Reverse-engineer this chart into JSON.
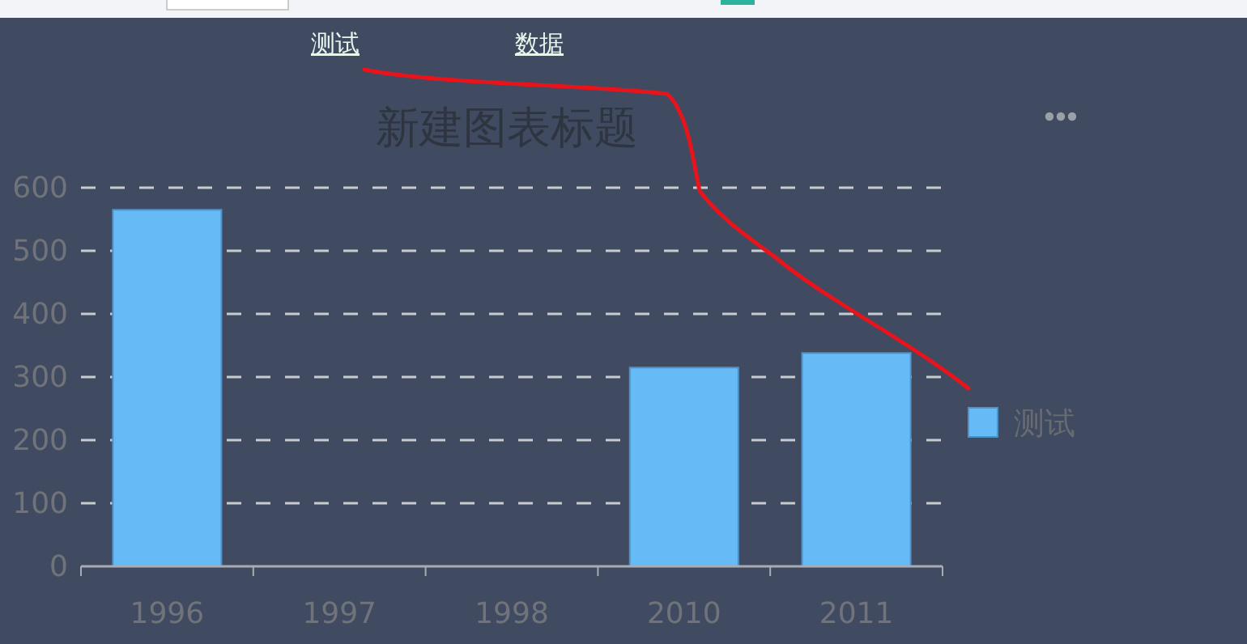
{
  "chart_data": {
    "type": "bar",
    "title": "新建图表标题",
    "categories": [
      "1996",
      "1997",
      "1998",
      "2010",
      "2011"
    ],
    "series": [
      {
        "name": "测试",
        "color": "#66bbf6",
        "values": [
          565,
          0,
          0,
          315,
          338
        ]
      }
    ],
    "ylim": [
      0,
      600
    ],
    "yticks": [
      0,
      100,
      200,
      300,
      400,
      500,
      600
    ],
    "grid": "y",
    "legend": "right",
    "annotations": [
      "测试",
      "数据"
    ]
  }
}
